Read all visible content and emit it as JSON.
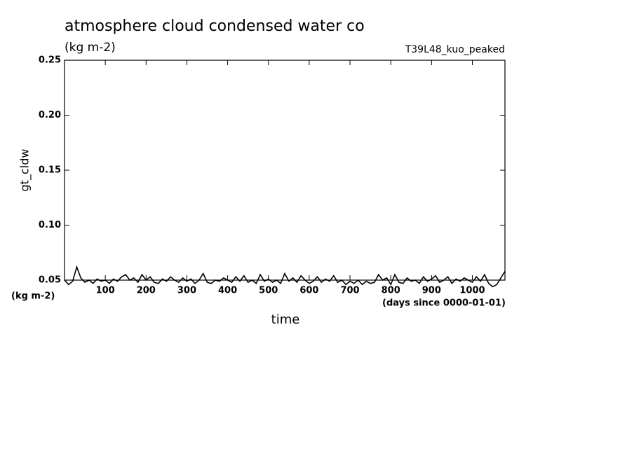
{
  "chart_data": {
    "type": "line",
    "title": "atmosphere cloud condensed water co",
    "subtitle": "(kg m-2)",
    "annotation": "T39L48_kuo_peaked",
    "y_label": "gt_cldw",
    "y_unit": "(kg m-2)",
    "x_label": "time",
    "x_unit": "(days since 0000-01-01)",
    "xlim": [
      0,
      1080
    ],
    "xticks": [
      100,
      200,
      300,
      400,
      500,
      600,
      700,
      800,
      900,
      1000
    ],
    "ylim": [
      0.05,
      0.25
    ],
    "yticks": [
      0.05,
      {
        "value": 0.1,
        "label": "0.10"
      },
      0.15,
      {
        "value": 0.2,
        "label": "0.20"
      },
      0.25
    ],
    "x": [
      0,
      10,
      20,
      30,
      40,
      50,
      60,
      70,
      80,
      90,
      100,
      110,
      120,
      130,
      140,
      150,
      160,
      170,
      180,
      190,
      200,
      210,
      220,
      230,
      240,
      250,
      260,
      270,
      280,
      290,
      300,
      310,
      320,
      330,
      340,
      350,
      360,
      370,
      380,
      390,
      400,
      410,
      420,
      430,
      440,
      450,
      460,
      470,
      480,
      490,
      500,
      510,
      520,
      530,
      540,
      550,
      560,
      570,
      580,
      590,
      600,
      610,
      620,
      630,
      640,
      650,
      660,
      670,
      680,
      690,
      700,
      710,
      720,
      730,
      740,
      750,
      760,
      770,
      780,
      790,
      800,
      810,
      820,
      830,
      840,
      850,
      860,
      870,
      880,
      890,
      900,
      910,
      920,
      930,
      940,
      950,
      960,
      970,
      980,
      990,
      1000,
      1010,
      1020,
      1030,
      1040,
      1050,
      1060,
      1070,
      1080
    ],
    "series": [
      {
        "color": "#000000",
        "values": [
          0.05,
          0.046,
          0.049,
          0.062,
          0.052,
          0.048,
          0.05,
          0.047,
          0.051,
          0.049,
          0.05,
          0.047,
          0.051,
          0.049,
          0.053,
          0.055,
          0.05,
          0.052,
          0.048,
          0.055,
          0.05,
          0.053,
          0.048,
          0.047,
          0.051,
          0.049,
          0.053,
          0.05,
          0.048,
          0.052,
          0.049,
          0.051,
          0.047,
          0.05,
          0.056,
          0.048,
          0.047,
          0.05,
          0.049,
          0.052,
          0.05,
          0.048,
          0.053,
          0.049,
          0.054,
          0.048,
          0.05,
          0.047,
          0.055,
          0.049,
          0.051,
          0.048,
          0.05,
          0.047,
          0.056,
          0.049,
          0.052,
          0.048,
          0.054,
          0.05,
          0.047,
          0.049,
          0.053,
          0.048,
          0.051,
          0.049,
          0.054,
          0.048,
          0.05,
          0.046,
          0.049,
          0.047,
          0.05,
          0.046,
          0.049,
          0.047,
          0.048,
          0.055,
          0.05,
          0.052,
          0.046,
          0.055,
          0.048,
          0.047,
          0.052,
          0.049,
          0.05,
          0.047,
          0.053,
          0.049,
          0.051,
          0.054,
          0.048,
          0.05,
          0.053,
          0.047,
          0.051,
          0.049,
          0.052,
          0.05,
          0.048,
          0.053,
          0.049,
          0.055,
          0.047,
          0.044,
          0.046,
          0.052,
          0.058
        ]
      }
    ]
  }
}
